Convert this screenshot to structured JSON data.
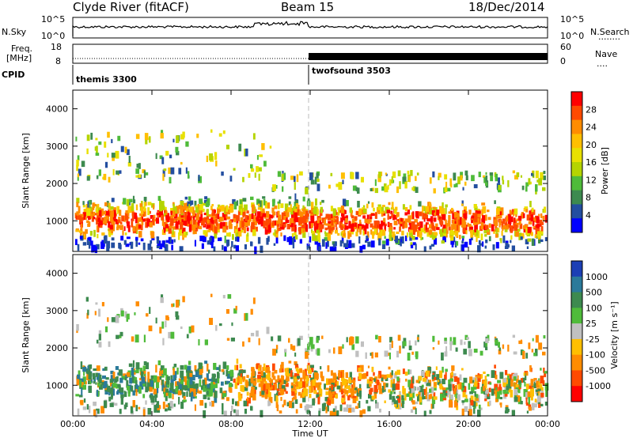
{
  "header": {
    "station": "Clyde River (fitACF)",
    "beam": "Beam 15",
    "date": "18/Dec/2014"
  },
  "panels": {
    "noise": {
      "left_label": "N.Sky",
      "left_ticks": [
        "10^5",
        "10^0"
      ],
      "right_ticks": [
        "10^5",
        "10^0"
      ],
      "right_label": "N.Search",
      "right_legend": "........"
    },
    "freq": {
      "left_label_top": "Freq.",
      "left_label_bot": "[MHz]",
      "left_ticks": [
        "18",
        "8"
      ],
      "right_ticks": [
        "60",
        "0"
      ],
      "right_label": "Nave",
      "right_legend": "...."
    },
    "cpid": {
      "label": "CPID",
      "segments": [
        {
          "name": "themis 3300",
          "start_hour": 0
        },
        {
          "name": "twofsound 3503",
          "start_hour": 12
        }
      ]
    }
  },
  "chart_data": [
    {
      "type": "heatmap",
      "title": "",
      "ylabel": "Slant Range [km]",
      "ylim": [
        180,
        4500
      ],
      "yticks": [
        "4000",
        "3000",
        "2000",
        "1000"
      ],
      "xlim": [
        0,
        24
      ],
      "colorbar": {
        "label": "Power [dB]",
        "tick_labels": [
          "28",
          "24",
          "20",
          "16",
          "12",
          "8",
          "4"
        ],
        "colors": [
          "#ff0000",
          "#ff4a00",
          "#ff8c00",
          "#ffbf00",
          "#e8e000",
          "#b5d400",
          "#4fbb3a",
          "#3d8a4f",
          "#234ea0",
          "#0000ff"
        ]
      },
      "scatter_bands": [
        {
          "hours": [
            0.2,
            24
          ],
          "range_km": [
            700,
            1700
          ],
          "level": "mostly 20-28 dB core near 1000 km, 8-16 dB edges"
        },
        {
          "hours": [
            1,
            10
          ],
          "range_km": [
            2000,
            3600
          ],
          "level": "patchy 8-20 dB"
        },
        {
          "hours": [
            14,
            24
          ],
          "range_km": [
            1800,
            2300
          ],
          "level": "patchy 8-20 dB"
        }
      ]
    },
    {
      "type": "heatmap",
      "title": "",
      "ylabel": "Slant Range [km]",
      "ylim": [
        180,
        4500
      ],
      "yticks": [
        "4000",
        "3000",
        "2000",
        "1000"
      ],
      "xlim": [
        0,
        24
      ],
      "xticks": [
        "00:00",
        "04:00",
        "08:00",
        "12:00",
        "16:00",
        "20:00",
        "00:00"
      ],
      "xlabel": "Time UT",
      "colorbar": {
        "label": "Velocity [m s⁻¹]",
        "tick_labels": [
          "1000",
          "500",
          "100",
          "25",
          "-25",
          "-100",
          "-500",
          "-1000"
        ],
        "colors": [
          "#1c3fb5",
          "#2b7a9a",
          "#3d8a4f",
          "#4fbb3a",
          "#c0c0c0",
          "#ffbf00",
          "#ff8c00",
          "#ff4a00",
          "#ff0000"
        ]
      },
      "scatter_bands": [
        {
          "hours": [
            0.2,
            12
          ],
          "range_km": [
            600,
            1700
          ],
          "level": "mostly -100 to +100 m/s, green/teal"
        },
        {
          "hours": [
            8,
            16
          ],
          "range_km": [
            700,
            2000
          ],
          "level": "mostly -100 to -500 m/s, orange"
        },
        {
          "hours": [
            16,
            24
          ],
          "range_km": [
            500,
            2100
          ],
          "level": "mixed orange and green, grey near 2000 km"
        }
      ]
    }
  ]
}
